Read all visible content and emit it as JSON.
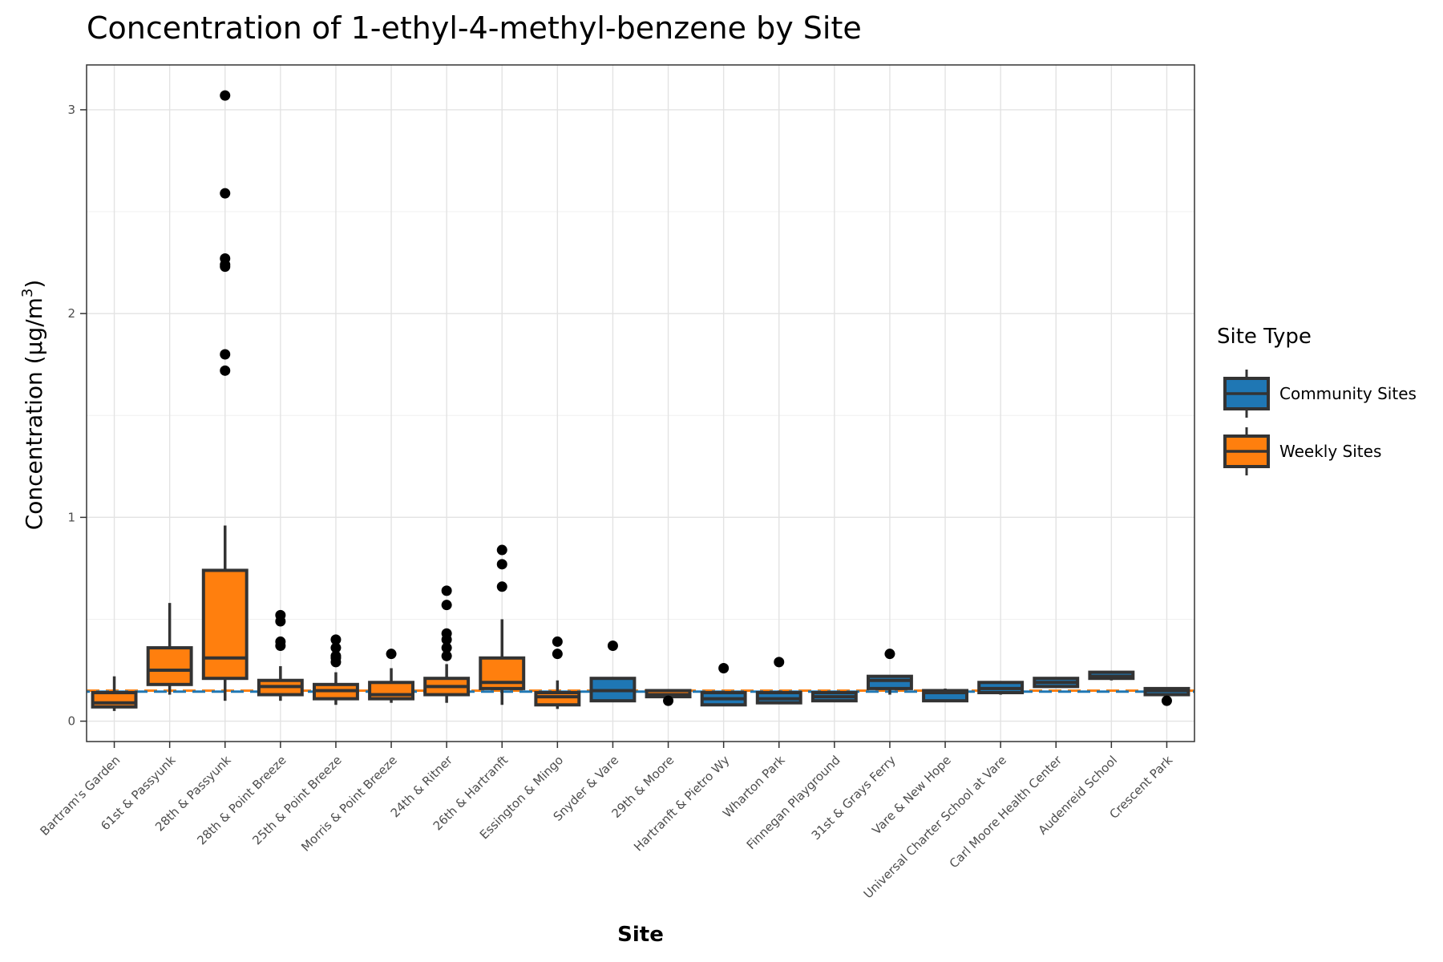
{
  "chart_data": {
    "type": "box",
    "title": "Concentration of 1-ethyl-4-methyl-benzene by Site",
    "xlabel": "Site",
    "ylabel": "Concentration (µg/m",
    "ylabel_superscript": "3",
    "ylabel_suffix": ")",
    "ylim": [
      -0.1,
      3.22
    ],
    "yticks": [
      0,
      1,
      2,
      3
    ],
    "grid": true,
    "reference_lines": [
      {
        "y": 0.15,
        "color": "#ff7f0e"
      },
      {
        "y": 0.145,
        "color": "#1f77b4"
      }
    ],
    "legend": {
      "title": "Site Type",
      "position": "right",
      "entries": [
        {
          "label": "Community Sites",
          "color": "#1f77b4"
        },
        {
          "label": "Weekly Sites",
          "color": "#ff7f0e"
        }
      ]
    },
    "categories": [
      "Bartram's Garden",
      "61st & Passyunk",
      "28th & Passyunk",
      "28th & Point Breeze",
      "25th & Point Breeze",
      "Morris & Point Breeze",
      "24th & Ritner",
      "26th & Hartranft",
      "Essington & Mingo",
      "Snyder & Vare",
      "29th & Moore",
      "Hartranft & Pietro Wy",
      "Wharton Park",
      "Finnegan Playground",
      "31st & Grays Ferry",
      "Vare & New Hope",
      "Universal Charter School at Vare",
      "Carl Moore Health Center",
      "Audenreid School",
      "Crescent Park"
    ],
    "boxes": [
      {
        "site": "Bartram's Garden",
        "type": "Weekly Sites",
        "lower": 0.05,
        "q1": 0.07,
        "median": 0.09,
        "q3": 0.14,
        "upper": 0.22,
        "outliers": []
      },
      {
        "site": "61st & Passyunk",
        "type": "Weekly Sites",
        "lower": 0.13,
        "q1": 0.18,
        "median": 0.25,
        "q3": 0.36,
        "upper": 0.58,
        "outliers": []
      },
      {
        "site": "28th & Passyunk",
        "type": "Weekly Sites",
        "lower": 0.1,
        "q1": 0.21,
        "median": 0.31,
        "q3": 0.74,
        "upper": 0.96,
        "outliers": [
          1.72,
          1.8,
          2.23,
          2.24,
          2.27,
          2.59,
          3.07
        ]
      },
      {
        "site": "28th & Point Breeze",
        "type": "Weekly Sites",
        "lower": 0.1,
        "q1": 0.13,
        "median": 0.17,
        "q3": 0.2,
        "upper": 0.27,
        "outliers": [
          0.37,
          0.39,
          0.49,
          0.52
        ]
      },
      {
        "site": "25th & Point Breeze",
        "type": "Weekly Sites",
        "lower": 0.08,
        "q1": 0.11,
        "median": 0.15,
        "q3": 0.18,
        "upper": 0.24,
        "outliers": [
          0.29,
          0.31,
          0.32,
          0.36,
          0.4
        ]
      },
      {
        "site": "Morris & Point Breeze",
        "type": "Weekly Sites",
        "lower": 0.09,
        "q1": 0.11,
        "median": 0.13,
        "q3": 0.19,
        "upper": 0.26,
        "outliers": [
          0.33
        ]
      },
      {
        "site": "24th & Ritner",
        "type": "Weekly Sites",
        "lower": 0.09,
        "q1": 0.13,
        "median": 0.17,
        "q3": 0.21,
        "upper": 0.28,
        "outliers": [
          0.32,
          0.36,
          0.4,
          0.43,
          0.57,
          0.64
        ]
      },
      {
        "site": "26th & Hartranft",
        "type": "Weekly Sites",
        "lower": 0.08,
        "q1": 0.16,
        "median": 0.19,
        "q3": 0.31,
        "upper": 0.5,
        "outliers": [
          0.66,
          0.77,
          0.84
        ]
      },
      {
        "site": "Essington & Mingo",
        "type": "Weekly Sites",
        "lower": 0.06,
        "q1": 0.08,
        "median": 0.12,
        "q3": 0.14,
        "upper": 0.2,
        "outliers": [
          0.33,
          0.39
        ]
      },
      {
        "site": "Snyder & Vare",
        "type": "Community Sites",
        "lower": 0.1,
        "q1": 0.1,
        "median": 0.15,
        "q3": 0.21,
        "upper": 0.21,
        "outliers": [
          0.37
        ]
      },
      {
        "site": "29th & Moore",
        "type": "Weekly Sites",
        "lower": 0.11,
        "q1": 0.12,
        "median": 0.13,
        "q3": 0.15,
        "upper": 0.15,
        "outliers": [
          0.1
        ]
      },
      {
        "site": "Hartranft & Pietro Wy",
        "type": "Community Sites",
        "lower": 0.08,
        "q1": 0.08,
        "median": 0.11,
        "q3": 0.14,
        "upper": 0.14,
        "outliers": [
          0.26
        ]
      },
      {
        "site": "Wharton Park",
        "type": "Community Sites",
        "lower": 0.09,
        "q1": 0.09,
        "median": 0.11,
        "q3": 0.14,
        "upper": 0.15,
        "outliers": [
          0.29
        ]
      },
      {
        "site": "Finnegan Playground",
        "type": "Community Sites",
        "lower": 0.1,
        "q1": 0.1,
        "median": 0.12,
        "q3": 0.14,
        "upper": 0.14,
        "outliers": []
      },
      {
        "site": "31st & Grays Ferry",
        "type": "Community Sites",
        "lower": 0.13,
        "q1": 0.16,
        "median": 0.2,
        "q3": 0.22,
        "upper": 0.22,
        "outliers": [
          0.33
        ]
      },
      {
        "site": "Vare & New Hope",
        "type": "Community Sites",
        "lower": 0.1,
        "q1": 0.1,
        "median": 0.14,
        "q3": 0.15,
        "upper": 0.16,
        "outliers": []
      },
      {
        "site": "Universal Charter School at Vare",
        "type": "Community Sites",
        "lower": 0.13,
        "q1": 0.14,
        "median": 0.16,
        "q3": 0.19,
        "upper": 0.19,
        "outliers": []
      },
      {
        "site": "Carl Moore Health Center",
        "type": "Community Sites",
        "lower": 0.17,
        "q1": 0.17,
        "median": 0.19,
        "q3": 0.21,
        "upper": 0.21,
        "outliers": []
      },
      {
        "site": "Audenreid School",
        "type": "Community Sites",
        "lower": 0.2,
        "q1": 0.21,
        "median": 0.22,
        "q3": 0.24,
        "upper": 0.24,
        "outliers": []
      },
      {
        "site": "Crescent Park",
        "type": "Community Sites",
        "lower": 0.13,
        "q1": 0.13,
        "median": 0.15,
        "q3": 0.16,
        "upper": 0.16,
        "outliers": [
          0.1
        ]
      }
    ]
  }
}
